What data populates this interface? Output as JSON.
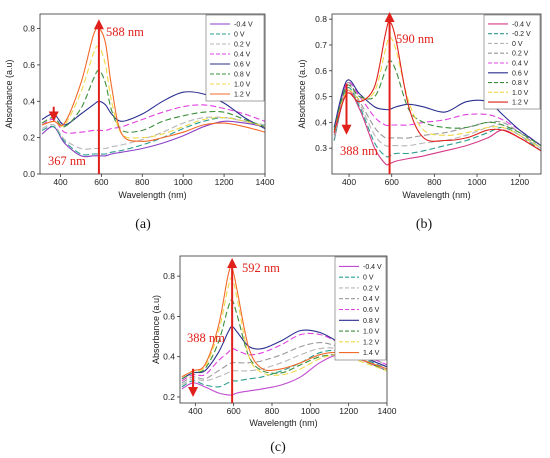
{
  "chart_data": [
    {
      "type": "line",
      "panel_label": "(a)",
      "xlabel": "Wavelength (nm)",
      "ylabel": "Absorbance (a.u)",
      "xlim": [
        300,
        1400
      ],
      "ylim": [
        0.0,
        0.88
      ],
      "xticks": [
        400,
        600,
        800,
        1000,
        1200,
        1400
      ],
      "xtick_labels": [
        "400",
        "600",
        "800",
        "1000",
        "1200",
        "1400"
      ],
      "yticks": [
        0.0,
        0.2,
        0.4,
        0.6,
        0.8
      ],
      "ytick_labels": [
        "0.0",
        "0.2",
        "0.4",
        "0.6",
        "0.8"
      ],
      "grid": false,
      "legend_position": "top-right",
      "annotations": [
        {
          "text": "588 nm",
          "arrow": "up",
          "x": 588,
          "y_from": 0.0,
          "y_to": 0.84
        },
        {
          "text": "367 nm",
          "arrow": "down",
          "x": 367,
          "y_from": 0.37,
          "y_to": 0.3
        }
      ],
      "x": [
        310,
        367,
        420,
        500,
        560,
        588,
        620,
        650,
        700,
        800,
        900,
        1000,
        1100,
        1200,
        1300,
        1400
      ],
      "series": [
        {
          "name": "-0.4 V",
          "color": "#8a3fc7",
          "dash": "",
          "values": [
            0.22,
            0.26,
            0.17,
            0.1,
            0.1,
            0.1,
            0.1,
            0.11,
            0.12,
            0.14,
            0.17,
            0.21,
            0.26,
            0.29,
            0.28,
            0.26
          ]
        },
        {
          "name": "0 V",
          "color": "#2a9d8f",
          "dash": "6 3",
          "values": [
            0.24,
            0.26,
            0.18,
            0.11,
            0.11,
            0.11,
            0.11,
            0.12,
            0.13,
            0.16,
            0.2,
            0.25,
            0.29,
            0.31,
            0.29,
            0.26
          ]
        },
        {
          "name": "0.2 V",
          "color": "#b7b7b7",
          "dash": "6 3",
          "values": [
            0.25,
            0.27,
            0.19,
            0.14,
            0.14,
            0.14,
            0.14,
            0.15,
            0.16,
            0.19,
            0.23,
            0.28,
            0.31,
            0.31,
            0.29,
            0.27
          ]
        },
        {
          "name": "0.4 V",
          "color": "#e040e0",
          "dash": "6 3",
          "values": [
            0.27,
            0.3,
            0.23,
            0.23,
            0.24,
            0.24,
            0.24,
            0.25,
            0.26,
            0.3,
            0.34,
            0.37,
            0.38,
            0.36,
            0.33,
            0.29
          ]
        },
        {
          "name": "0.6 V",
          "color": "#2b2f8f",
          "dash": "",
          "values": [
            0.3,
            0.33,
            0.27,
            0.33,
            0.38,
            0.4,
            0.38,
            0.33,
            0.29,
            0.33,
            0.4,
            0.45,
            0.44,
            0.39,
            0.31,
            0.25
          ]
        },
        {
          "name": "0.8 V",
          "color": "#3b8f3b",
          "dash": "6 3",
          "values": [
            0.28,
            0.31,
            0.26,
            0.36,
            0.52,
            0.57,
            0.5,
            0.35,
            0.24,
            0.24,
            0.29,
            0.32,
            0.34,
            0.34,
            0.3,
            0.26
          ]
        },
        {
          "name": "1.0 V",
          "color": "#f0d84a",
          "dash": "6 3",
          "values": [
            0.27,
            0.29,
            0.27,
            0.45,
            0.66,
            0.7,
            0.6,
            0.4,
            0.22,
            0.2,
            0.22,
            0.26,
            0.3,
            0.31,
            0.29,
            0.26
          ]
        },
        {
          "name": "1.2 V",
          "color": "#f26a2a",
          "dash": "",
          "values": [
            0.27,
            0.29,
            0.28,
            0.5,
            0.76,
            0.8,
            0.72,
            0.48,
            0.22,
            0.18,
            0.2,
            0.23,
            0.27,
            0.28,
            0.26,
            0.23
          ]
        }
      ]
    },
    {
      "type": "line",
      "panel_label": "(b)",
      "xlabel": "Wavelength (nm)",
      "ylabel": "Absorbance (a.u)",
      "xlim": [
        320,
        1300
      ],
      "ylim": [
        0.2,
        0.82
      ],
      "xticks": [
        400,
        600,
        800,
        1000,
        1200
      ],
      "xtick_labels": [
        "400",
        "600",
        "800",
        "1000",
        "1200"
      ],
      "yticks": [
        0.3,
        0.4,
        0.5,
        0.6,
        0.7,
        0.8
      ],
      "ytick_labels": [
        "0.3",
        "0.4",
        "0.5",
        "0.6",
        "0.7",
        "0.8"
      ],
      "grid": false,
      "legend_position": "top-right",
      "annotations": [
        {
          "text": "590 nm",
          "arrow": "up",
          "x": 590,
          "y_from": 0.2,
          "y_to": 0.82
        },
        {
          "text": "388 nm",
          "arrow": "down",
          "x": 388,
          "y_from": 0.55,
          "y_to": 0.36
        }
      ],
      "x": [
        330,
        388,
        450,
        520,
        570,
        590,
        620,
        680,
        750,
        850,
        950,
        1050,
        1120,
        1200,
        1300
      ],
      "series": [
        {
          "name": "-0.4 V",
          "color": "#d63a8a",
          "dash": "",
          "values": [
            0.33,
            0.52,
            0.45,
            0.3,
            0.24,
            0.24,
            0.25,
            0.26,
            0.27,
            0.29,
            0.31,
            0.34,
            0.37,
            0.34,
            0.29
          ]
        },
        {
          "name": "-0.2 V",
          "color": "#2a9d8f",
          "dash": "6 3",
          "values": [
            0.33,
            0.53,
            0.46,
            0.32,
            0.27,
            0.27,
            0.28,
            0.28,
            0.29,
            0.31,
            0.33,
            0.36,
            0.38,
            0.35,
            0.29
          ]
        },
        {
          "name": "0 V",
          "color": "#b7b7b7",
          "dash": "6 3",
          "values": [
            0.34,
            0.54,
            0.47,
            0.35,
            0.31,
            0.31,
            0.31,
            0.31,
            0.32,
            0.33,
            0.35,
            0.38,
            0.39,
            0.35,
            0.3
          ]
        },
        {
          "name": "0.2 V",
          "color": "#999999",
          "dash": "6 3",
          "values": [
            0.35,
            0.55,
            0.48,
            0.38,
            0.34,
            0.34,
            0.34,
            0.34,
            0.35,
            0.36,
            0.38,
            0.4,
            0.4,
            0.36,
            0.3
          ]
        },
        {
          "name": "0.4 V",
          "color": "#e040e0",
          "dash": "6 3",
          "values": [
            0.36,
            0.55,
            0.5,
            0.42,
            0.39,
            0.39,
            0.39,
            0.39,
            0.4,
            0.41,
            0.43,
            0.43,
            0.41,
            0.37,
            0.31
          ]
        },
        {
          "name": "0.6 V",
          "color": "#2b2f8f",
          "dash": "",
          "values": [
            0.38,
            0.56,
            0.51,
            0.46,
            0.45,
            0.45,
            0.46,
            0.47,
            0.46,
            0.44,
            0.48,
            0.48,
            0.43,
            0.37,
            0.31
          ]
        },
        {
          "name": "0.8 V",
          "color": "#3b8f3b",
          "dash": "6 3",
          "values": [
            0.37,
            0.54,
            0.5,
            0.5,
            0.6,
            0.64,
            0.6,
            0.45,
            0.4,
            0.38,
            0.38,
            0.4,
            0.39,
            0.36,
            0.31
          ]
        },
        {
          "name": "1.0 V",
          "color": "#f0d84a",
          "dash": "6 3",
          "values": [
            0.36,
            0.52,
            0.49,
            0.52,
            0.68,
            0.73,
            0.68,
            0.48,
            0.37,
            0.35,
            0.36,
            0.38,
            0.38,
            0.35,
            0.3
          ]
        },
        {
          "name": "1.2 V",
          "color": "#e0201b",
          "dash": "",
          "values": [
            0.36,
            0.51,
            0.48,
            0.54,
            0.74,
            0.79,
            0.72,
            0.46,
            0.34,
            0.33,
            0.34,
            0.37,
            0.37,
            0.34,
            0.29
          ]
        }
      ]
    },
    {
      "type": "line",
      "panel_label": "(c)",
      "xlabel": "Wavelength (nm)",
      "ylabel": "Absorbance (a.u)",
      "xlim": [
        320,
        1400
      ],
      "ylim": [
        0.17,
        0.9
      ],
      "xticks": [
        400,
        600,
        800,
        1000,
        1200,
        1400
      ],
      "xtick_labels": [
        "400",
        "600",
        "800",
        "1000",
        "1200",
        "1400"
      ],
      "yticks": [
        0.2,
        0.4,
        0.6,
        0.8
      ],
      "ytick_labels": [
        "0.2",
        "0.4",
        "0.6",
        "0.8"
      ],
      "grid": false,
      "legend_position": "top-right",
      "annotations": [
        {
          "text": "592 nm",
          "arrow": "up",
          "x": 592,
          "y_from": 0.17,
          "y_to": 0.88
        },
        {
          "text": "388 nm",
          "arrow": "down",
          "x": 388,
          "y_from": 0.34,
          "y_to": 0.21
        }
      ],
      "x": [
        330,
        388,
        450,
        520,
        570,
        592,
        620,
        680,
        750,
        850,
        950,
        1050,
        1150,
        1250,
        1400
      ],
      "series": [
        {
          "name": "-0.4 V",
          "color": "#c04ad0",
          "dash": "",
          "values": [
            0.24,
            0.27,
            0.25,
            0.22,
            0.21,
            0.21,
            0.22,
            0.23,
            0.24,
            0.26,
            0.3,
            0.37,
            0.41,
            0.39,
            0.33
          ]
        },
        {
          "name": "0 V",
          "color": "#2a9d8f",
          "dash": "6 3",
          "values": [
            0.25,
            0.28,
            0.26,
            0.25,
            0.27,
            0.28,
            0.28,
            0.29,
            0.3,
            0.33,
            0.37,
            0.42,
            0.43,
            0.4,
            0.34
          ]
        },
        {
          "name": "0.2 V",
          "color": "#b7b7b7",
          "dash": "6 3",
          "values": [
            0.26,
            0.29,
            0.28,
            0.3,
            0.32,
            0.33,
            0.33,
            0.33,
            0.34,
            0.37,
            0.41,
            0.44,
            0.44,
            0.41,
            0.35
          ]
        },
        {
          "name": "0.4 V",
          "color": "#999999",
          "dash": "6 3",
          "values": [
            0.27,
            0.3,
            0.29,
            0.33,
            0.36,
            0.37,
            0.37,
            0.37,
            0.38,
            0.41,
            0.45,
            0.47,
            0.45,
            0.42,
            0.36
          ]
        },
        {
          "name": "0.6 V",
          "color": "#e040e0",
          "dash": "6 3",
          "values": [
            0.28,
            0.31,
            0.31,
            0.38,
            0.42,
            0.44,
            0.43,
            0.41,
            0.42,
            0.46,
            0.51,
            0.51,
            0.47,
            0.42,
            0.36
          ]
        },
        {
          "name": "0.8 V",
          "color": "#2b2f8f",
          "dash": "",
          "values": [
            0.29,
            0.32,
            0.33,
            0.42,
            0.52,
            0.55,
            0.52,
            0.45,
            0.44,
            0.48,
            0.53,
            0.52,
            0.47,
            0.41,
            0.35
          ]
        },
        {
          "name": "1.0 V",
          "color": "#3b8f3b",
          "dash": "6 3",
          "values": [
            0.29,
            0.32,
            0.34,
            0.47,
            0.64,
            0.68,
            0.6,
            0.4,
            0.33,
            0.32,
            0.36,
            0.4,
            0.41,
            0.39,
            0.33
          ]
        },
        {
          "name": "1.2 V",
          "color": "#f0d84a",
          "dash": "6 3",
          "values": [
            0.3,
            0.33,
            0.35,
            0.52,
            0.74,
            0.79,
            0.68,
            0.4,
            0.32,
            0.31,
            0.34,
            0.39,
            0.41,
            0.38,
            0.33
          ]
        },
        {
          "name": "1.4 V",
          "color": "#f26a2a",
          "dash": "",
          "values": [
            0.3,
            0.33,
            0.36,
            0.55,
            0.8,
            0.84,
            0.72,
            0.44,
            0.34,
            0.34,
            0.37,
            0.41,
            0.42,
            0.39,
            0.34
          ]
        }
      ]
    }
  ]
}
